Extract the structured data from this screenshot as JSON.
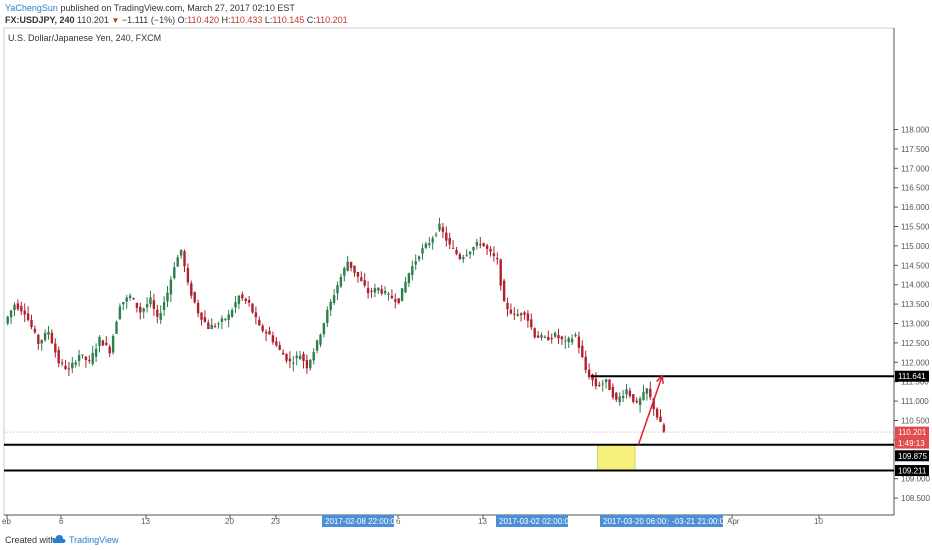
{
  "header": {
    "author": "YaChengSun",
    "published_text": "published on TradingView.com, March 27, 2017 02:10 EST",
    "symbol": "FX:USDJPY, 240",
    "last": "110.201",
    "change": "−1.111 (−1%)",
    "open_label": "O:",
    "open": "110.420",
    "high_label": "H:",
    "high": "110.433",
    "low_label": "L:",
    "low": "110.145",
    "close_label": "C:",
    "close": "110.201"
  },
  "footer": {
    "created": "Created with",
    "brand": "TradingView"
  },
  "colors": {
    "up": "#2e7d4f",
    "down": "#b0202d",
    "zone_fill": "#f5f07a",
    "arrow": "#e0202a",
    "axis_tag": "#4a90d9"
  },
  "chart_data": {
    "type": "candlestick",
    "title": "U.S. Dollar/Japanese Yen, 240, FXCM",
    "ylim": [
      108.0,
      118.25
    ],
    "y_ticks": [
      "118.000",
      "117.500",
      "117.000",
      "116.500",
      "116.000",
      "115.500",
      "115.000",
      "114.500",
      "114.000",
      "113.500",
      "113.000",
      "112.500",
      "112.000",
      "111.500",
      "111.000",
      "110.500",
      "110.000",
      "109.000",
      "108.500"
    ],
    "x_ticks": [
      "eb",
      "6",
      "13",
      "20",
      "23",
      "6",
      "13",
      "Apr",
      "10"
    ],
    "x_tags": [
      "2017-02-08 22:00:00",
      "2017-03-02 02:00:00",
      "2017-03-20 06:00:00",
      "-03-21 21:00:00"
    ],
    "price_tags": [
      "111.641",
      "110.201",
      "1:49:13",
      "109.875",
      "109.211"
    ],
    "levels": {
      "resistance": 111.641,
      "zone_top": 109.875,
      "zone_bottom": 109.211,
      "last": 110.201
    },
    "path_points": [
      [
        0,
        113.0
      ],
      [
        3,
        113.5
      ],
      [
        6,
        113.3
      ],
      [
        10,
        112.5
      ],
      [
        13,
        112.8
      ],
      [
        16,
        112.0
      ],
      [
        19,
        111.8
      ],
      [
        22,
        112.2
      ],
      [
        25,
        112.0
      ],
      [
        28,
        112.6
      ],
      [
        31,
        112.3
      ],
      [
        34,
        113.5
      ],
      [
        37,
        113.7
      ],
      [
        40,
        113.3
      ],
      [
        43,
        113.6
      ],
      [
        45,
        113.1
      ],
      [
        48,
        113.8
      ],
      [
        50,
        114.5
      ],
      [
        52,
        114.9
      ],
      [
        54,
        114.0
      ],
      [
        57,
        113.3
      ],
      [
        60,
        112.9
      ],
      [
        63,
        113.0
      ],
      [
        66,
        113.2
      ],
      [
        69,
        113.7
      ],
      [
        72,
        113.5
      ],
      [
        75,
        112.9
      ],
      [
        78,
        112.7
      ],
      [
        81,
        112.3
      ],
      [
        84,
        112.0
      ],
      [
        87,
        112.2
      ],
      [
        89,
        111.9
      ],
      [
        92,
        112.5
      ],
      [
        95,
        113.3
      ],
      [
        98,
        114.0
      ],
      [
        101,
        114.6
      ],
      [
        104,
        114.2
      ],
      [
        107,
        113.8
      ],
      [
        110,
        113.9
      ],
      [
        113,
        113.7
      ],
      [
        116,
        113.6
      ],
      [
        119,
        114.3
      ],
      [
        122,
        114.8
      ],
      [
        125,
        115.1
      ],
      [
        128,
        115.5
      ],
      [
        131,
        115.0
      ],
      [
        134,
        114.7
      ],
      [
        137,
        114.9
      ],
      [
        140,
        115.1
      ],
      [
        143,
        114.8
      ],
      [
        145,
        114.6
      ],
      [
        147,
        113.5
      ],
      [
        150,
        113.2
      ],
      [
        153,
        113.3
      ],
      [
        156,
        112.7
      ],
      [
        159,
        112.6
      ],
      [
        162,
        112.7
      ],
      [
        165,
        112.5
      ],
      [
        168,
        112.7
      ],
      [
        171,
        111.8
      ],
      [
        174,
        111.4
      ],
      [
        177,
        111.5
      ],
      [
        180,
        111.0
      ],
      [
        183,
        111.3
      ],
      [
        186,
        110.9
      ],
      [
        189,
        111.3
      ],
      [
        192,
        110.6
      ],
      [
        194,
        110.2
      ]
    ],
    "zone_time": [
      174,
      185
    ],
    "arrow": {
      "from": [
        186,
        109.875
      ],
      "to": [
        193,
        111.65
      ]
    }
  }
}
